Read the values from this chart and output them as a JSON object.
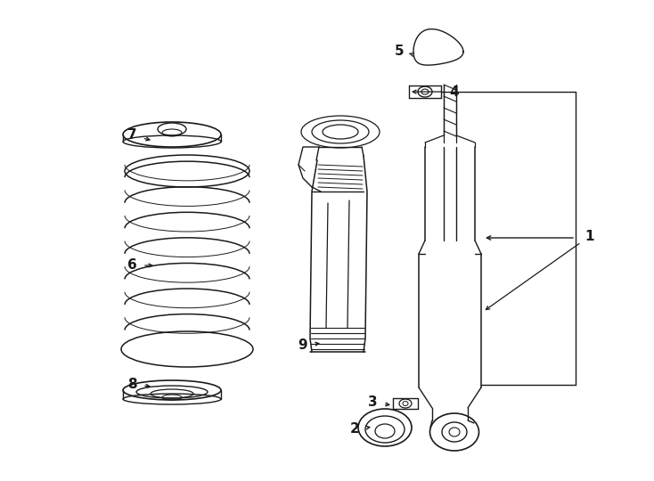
{
  "bg_color": "#ffffff",
  "line_color": "#1a1a1a",
  "fig_width": 7.34,
  "fig_height": 5.4,
  "dpi": 100,
  "fontsize": 11
}
